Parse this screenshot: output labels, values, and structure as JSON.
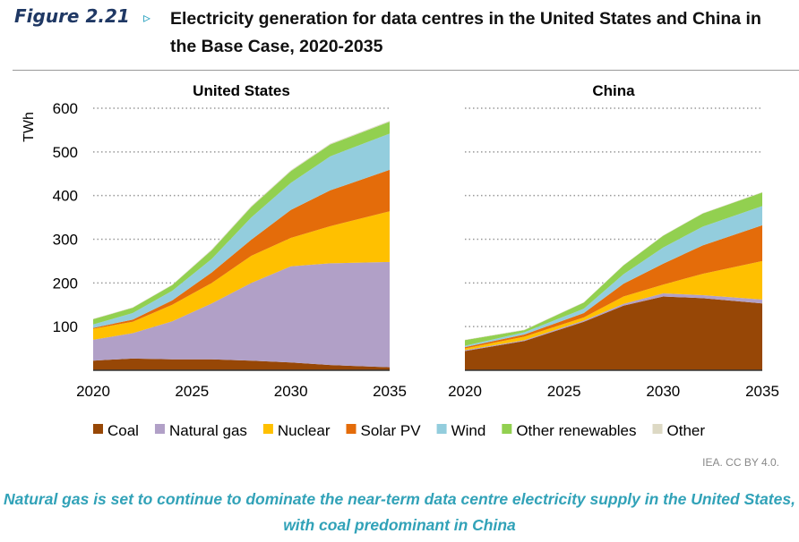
{
  "header": {
    "figure_label": "Figure 2.21",
    "arrow": "▹",
    "title": "Electricity generation for data centres in the United States and China in the Base Case, 2020-2035"
  },
  "source": "IEA. CC BY 4.0.",
  "caption": "Natural gas is set to continue to dominate the near-term data centre electricity supply in the United States, with coal predominant in China",
  "chart_data": [
    {
      "type": "area",
      "title": "United States",
      "ylabel": "TWh",
      "ylim": [
        0,
        600
      ],
      "yticks": [
        100,
        200,
        300,
        400,
        500,
        600
      ],
      "xticks": [
        2020,
        2025,
        2030,
        2035
      ],
      "grid": true,
      "x": [
        2020,
        2022,
        2024,
        2026,
        2028,
        2030,
        2032,
        2035
      ],
      "series": [
        {
          "name": "Coal",
          "color": "#974706",
          "values": [
            22,
            27,
            25,
            25,
            22,
            18,
            12,
            7
          ]
        },
        {
          "name": "Natural gas",
          "color": "#b1a0c7",
          "values": [
            48,
            58,
            87,
            128,
            178,
            220,
            233,
            241
          ]
        },
        {
          "name": "Nuclear",
          "color": "#ffc000",
          "values": [
            25,
            26,
            38,
            47,
            62,
            65,
            85,
            116
          ]
        },
        {
          "name": "Solar PV",
          "color": "#e46c0a",
          "values": [
            2,
            5,
            10,
            24,
            37,
            64,
            82,
            95
          ]
        },
        {
          "name": "Wind",
          "color": "#93cddd",
          "values": [
            8,
            15,
            22,
            31,
            51,
            62,
            78,
            83
          ]
        },
        {
          "name": "Other renewables",
          "color": "#92d050",
          "values": [
            12,
            12,
            13,
            20,
            24,
            27,
            27,
            27
          ]
        },
        {
          "name": "Other",
          "color": "#ddd9c4",
          "values": [
            1,
            1,
            1,
            2,
            2,
            2,
            2,
            2
          ]
        }
      ]
    },
    {
      "type": "area",
      "title": "China",
      "ylim": [
        0,
        600
      ],
      "xticks": [
        2020,
        2025,
        2030,
        2035
      ],
      "grid": true,
      "x": [
        2020,
        2023,
        2026,
        2028,
        2030,
        2032,
        2035
      ],
      "series": [
        {
          "name": "Coal",
          "color": "#974706",
          "values": [
            44,
            67,
            111,
            148,
            169,
            165,
            153
          ]
        },
        {
          "name": "Natural gas",
          "color": "#b1a0c7",
          "values": [
            2,
            2,
            3,
            4,
            7,
            7,
            9
          ]
        },
        {
          "name": "Nuclear",
          "color": "#ffc000",
          "values": [
            4,
            8,
            7,
            17,
            20,
            49,
            88
          ]
        },
        {
          "name": "Solar PV",
          "color": "#e46c0a",
          "values": [
            3,
            5,
            10,
            29,
            48,
            65,
            82
          ]
        },
        {
          "name": "Wind",
          "color": "#93cddd",
          "values": [
            3,
            5,
            10,
            22,
            37,
            43,
            44
          ]
        },
        {
          "name": "Other renewables",
          "color": "#92d050",
          "values": [
            13,
            5,
            14,
            20,
            27,
            30,
            31
          ]
        },
        {
          "name": "Other",
          "color": "#ddd9c4",
          "values": [
            1,
            1,
            1,
            1,
            1,
            1,
            1
          ]
        }
      ]
    }
  ]
}
